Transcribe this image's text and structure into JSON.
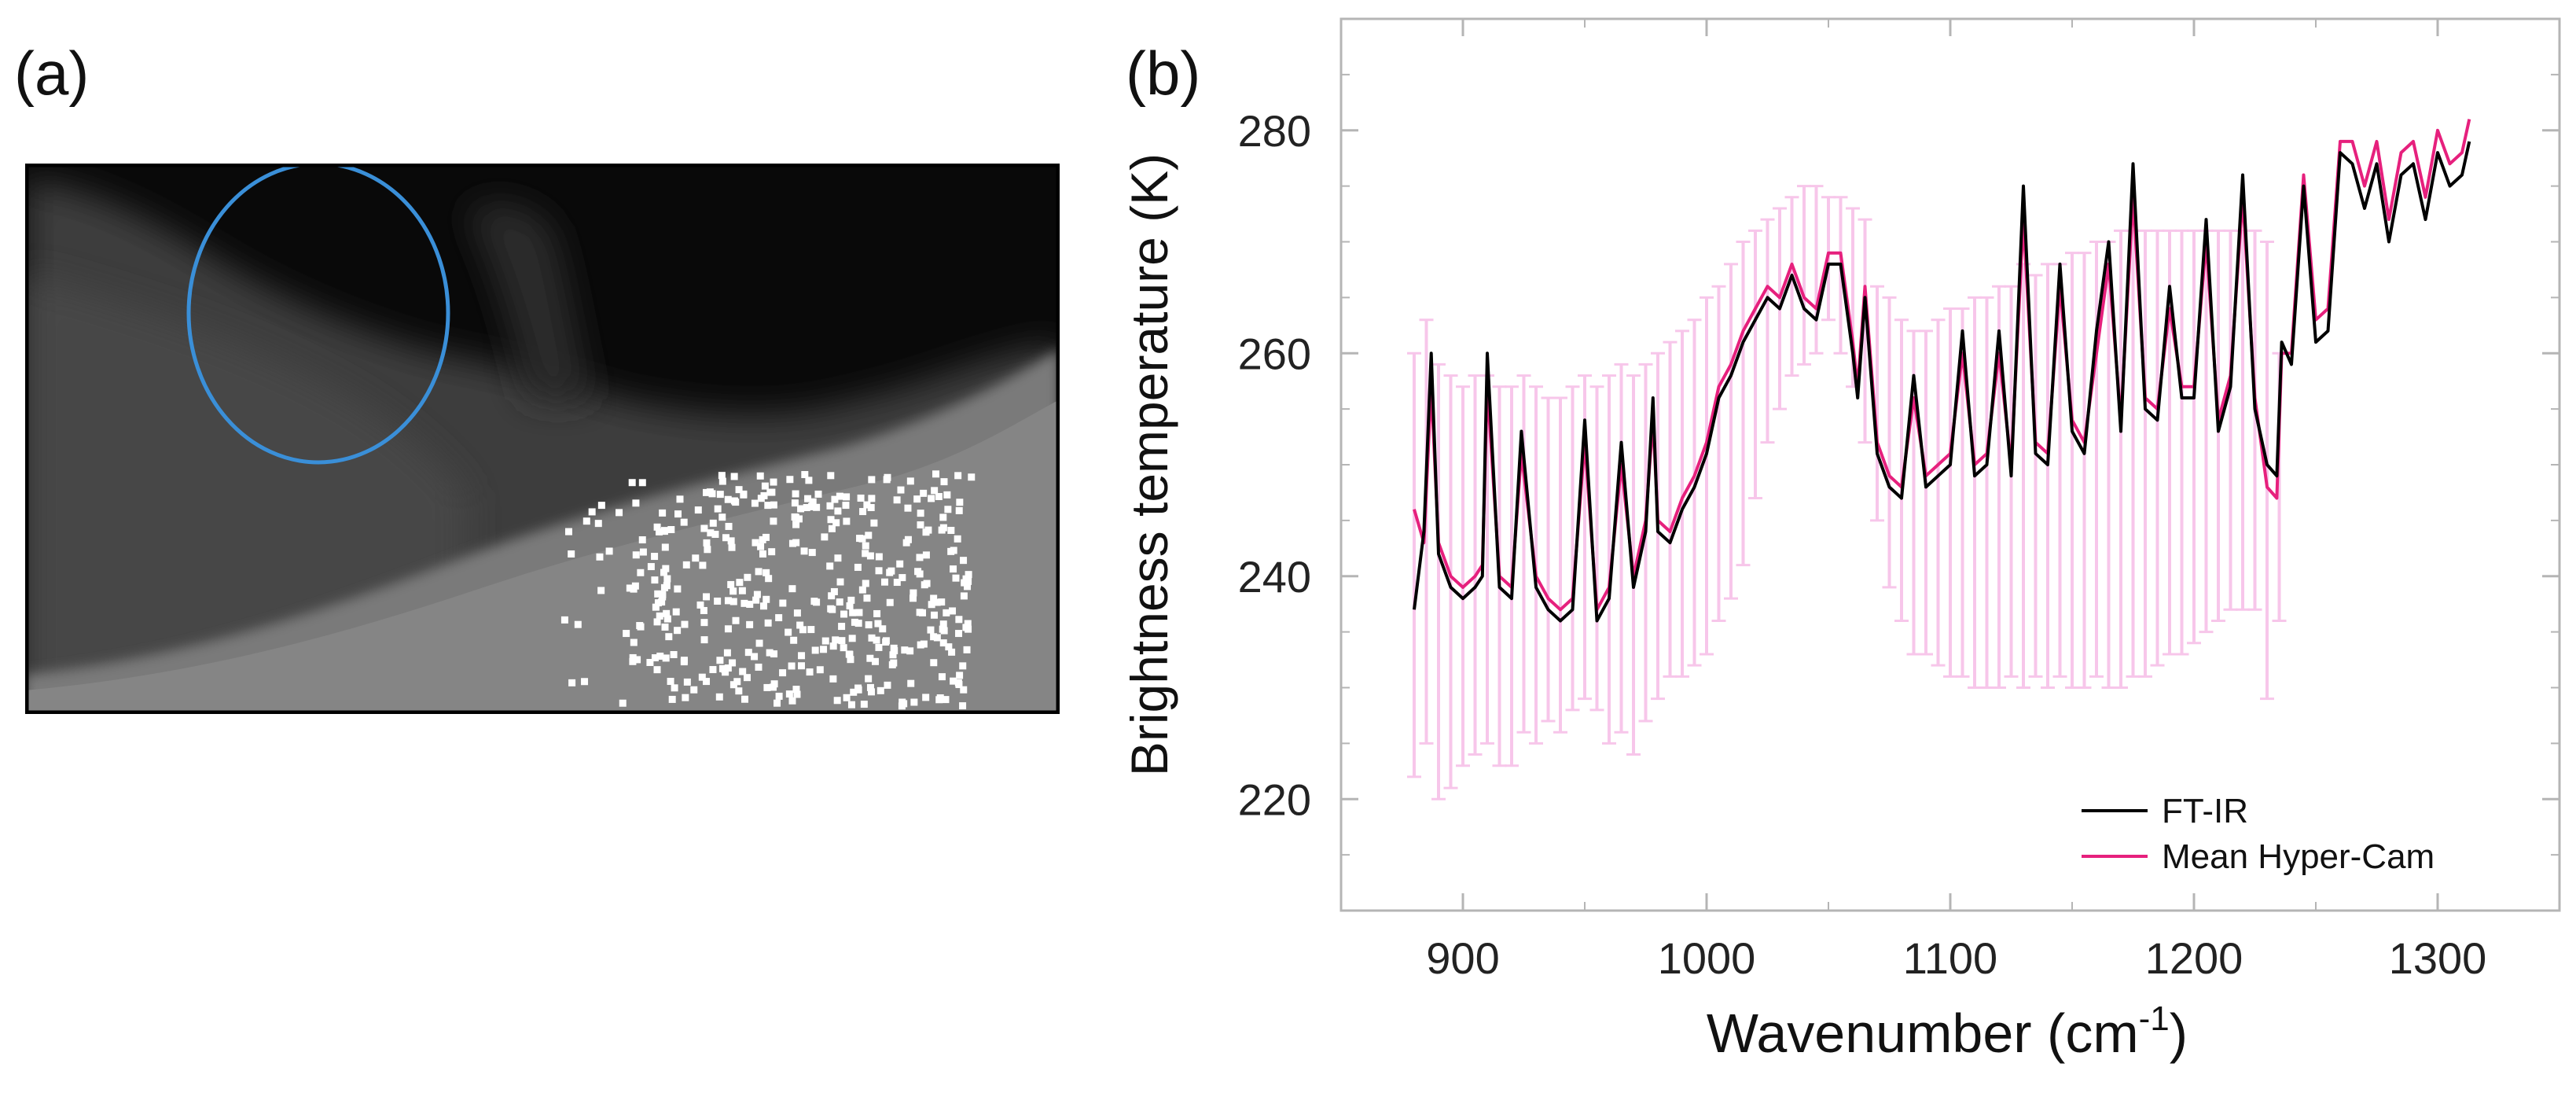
{
  "panel_a": {
    "label": "(a)",
    "highlight_color": "#3a8fd8"
  },
  "panel_b": {
    "label": "(b)"
  },
  "chart_data": {
    "type": "line",
    "title": "",
    "xlabel": "Wavenumber (cm-1)",
    "xlabel_main": "Wavenumber (cm",
    "xlabel_sup": "-1",
    "xlabel_close": ")",
    "ylabel": "Brightness temperature (K)",
    "xlim": [
      850,
      1350
    ],
    "ylim": [
      210,
      290
    ],
    "xticks": [
      900,
      1000,
      1100,
      1200,
      1300
    ],
    "yticks": [
      220,
      240,
      260,
      280
    ],
    "grid": false,
    "legend_position": "bottom-right",
    "series": [
      {
        "name": "FT-IR",
        "color": "#000000",
        "x": [
          880,
          884,
          887,
          890,
          895,
          900,
          905,
          908,
          910,
          915,
          920,
          924,
          930,
          935,
          940,
          945,
          950,
          955,
          960,
          965,
          970,
          975,
          978,
          980,
          985,
          990,
          995,
          1000,
          1005,
          1010,
          1015,
          1020,
          1025,
          1030,
          1035,
          1040,
          1045,
          1050,
          1055,
          1060,
          1062,
          1065,
          1070,
          1075,
          1080,
          1085,
          1090,
          1095,
          1100,
          1105,
          1110,
          1115,
          1120,
          1125,
          1130,
          1135,
          1140,
          1145,
          1150,
          1155,
          1160,
          1165,
          1170,
          1175,
          1180,
          1185,
          1190,
          1195,
          1200,
          1205,
          1210,
          1215,
          1220,
          1225,
          1230,
          1234,
          1236,
          1240,
          1245,
          1250,
          1255,
          1260,
          1265,
          1270,
          1275,
          1280,
          1285,
          1290,
          1295,
          1300,
          1305,
          1310,
          1313
        ],
        "y": [
          237,
          244,
          260,
          242,
          239,
          238,
          239,
          240,
          260,
          239,
          238,
          253,
          239,
          237,
          236,
          237,
          254,
          236,
          238,
          252,
          239,
          244,
          256,
          244,
          243,
          246,
          248,
          251,
          256,
          258,
          261,
          263,
          265,
          264,
          267,
          264,
          263,
          268,
          268,
          260,
          256,
          265,
          251,
          248,
          247,
          258,
          248,
          249,
          250,
          262,
          249,
          250,
          262,
          249,
          275,
          251,
          250,
          268,
          253,
          251,
          262,
          270,
          253,
          277,
          255,
          254,
          266,
          256,
          256,
          272,
          253,
          257,
          276,
          255,
          250,
          249,
          261,
          259,
          275,
          261,
          262,
          278,
          277,
          273,
          277,
          270,
          276,
          277,
          272,
          278,
          275,
          276,
          279
        ]
      },
      {
        "name": "Mean Hyper-Cam",
        "color": "#e6207d",
        "x": [
          880,
          884,
          887,
          890,
          895,
          900,
          905,
          908,
          910,
          915,
          920,
          924,
          930,
          935,
          940,
          945,
          950,
          955,
          960,
          965,
          970,
          975,
          978,
          980,
          985,
          990,
          995,
          1000,
          1005,
          1010,
          1015,
          1020,
          1025,
          1030,
          1035,
          1040,
          1045,
          1050,
          1055,
          1060,
          1062,
          1065,
          1070,
          1075,
          1080,
          1085,
          1090,
          1095,
          1100,
          1105,
          1110,
          1115,
          1120,
          1125,
          1130,
          1135,
          1140,
          1145,
          1150,
          1155,
          1160,
          1165,
          1170,
          1175,
          1180,
          1185,
          1190,
          1195,
          1200,
          1205,
          1210,
          1215,
          1220,
          1225,
          1230,
          1234,
          1236,
          1240,
          1245,
          1250,
          1255,
          1260,
          1265,
          1270,
          1275,
          1280,
          1285,
          1290,
          1295,
          1300,
          1305,
          1310,
          1313
        ],
        "y": [
          246,
          243,
          257,
          243,
          240,
          239,
          240,
          241,
          257,
          240,
          239,
          251,
          240,
          238,
          237,
          238,
          252,
          237,
          239,
          250,
          240,
          245,
          254,
          245,
          244,
          247,
          249,
          252,
          257,
          259,
          262,
          264,
          266,
          265,
          268,
          265,
          264,
          269,
          269,
          261,
          257,
          266,
          252,
          249,
          248,
          256,
          249,
          250,
          251,
          260,
          250,
          251,
          260,
          250,
          272,
          252,
          251,
          266,
          254,
          252,
          260,
          268,
          254,
          274,
          256,
          255,
          264,
          257,
          257,
          270,
          254,
          258,
          274,
          256,
          248,
          247,
          260,
          260,
          276,
          263,
          264,
          279,
          279,
          275,
          279,
          272,
          278,
          279,
          274,
          280,
          277,
          278,
          281
        ]
      }
    ],
    "error_band": {
      "series": "Mean Hyper-Cam",
      "color": "#f7c6ea",
      "x": [
        880,
        885,
        890,
        895,
        900,
        905,
        910,
        915,
        920,
        925,
        930,
        935,
        940,
        945,
        950,
        955,
        960,
        965,
        970,
        975,
        980,
        985,
        990,
        995,
        1000,
        1005,
        1010,
        1015,
        1020,
        1025,
        1030,
        1035,
        1040,
        1045,
        1050,
        1055,
        1060,
        1065,
        1070,
        1075,
        1080,
        1085,
        1090,
        1095,
        1100,
        1105,
        1110,
        1115,
        1120,
        1125,
        1130,
        1135,
        1140,
        1145,
        1150,
        1155,
        1160,
        1165,
        1170,
        1175,
        1180,
        1185,
        1190,
        1195,
        1200,
        1205,
        1210,
        1215,
        1220,
        1225,
        1230,
        1235
      ],
      "upper": [
        260,
        263,
        259,
        258,
        257,
        258,
        258,
        257,
        257,
        258,
        257,
        256,
        256,
        257,
        258,
        257,
        258,
        259,
        258,
        259,
        260,
        261,
        262,
        263,
        265,
        266,
        268,
        270,
        271,
        272,
        273,
        274,
        275,
        275,
        274,
        274,
        273,
        272,
        266,
        265,
        263,
        262,
        262,
        263,
        264,
        264,
        265,
        265,
        266,
        266,
        268,
        267,
        268,
        268,
        269,
        269,
        270,
        270,
        271,
        271,
        271,
        271,
        271,
        271,
        271,
        271,
        271,
        271,
        271,
        271,
        270,
        260
      ],
      "lower": [
        222,
        225,
        220,
        221,
        223,
        224,
        225,
        223,
        223,
        226,
        225,
        227,
        226,
        228,
        229,
        228,
        225,
        226,
        224,
        227,
        229,
        231,
        231,
        232,
        233,
        236,
        238,
        241,
        247,
        252,
        255,
        258,
        259,
        260,
        263,
        260,
        257,
        252,
        245,
        239,
        236,
        233,
        233,
        232,
        231,
        231,
        230,
        230,
        230,
        231,
        230,
        231,
        230,
        231,
        230,
        230,
        231,
        230,
        230,
        231,
        231,
        232,
        233,
        233,
        234,
        235,
        236,
        237,
        237,
        237,
        229,
        236
      ]
    }
  }
}
